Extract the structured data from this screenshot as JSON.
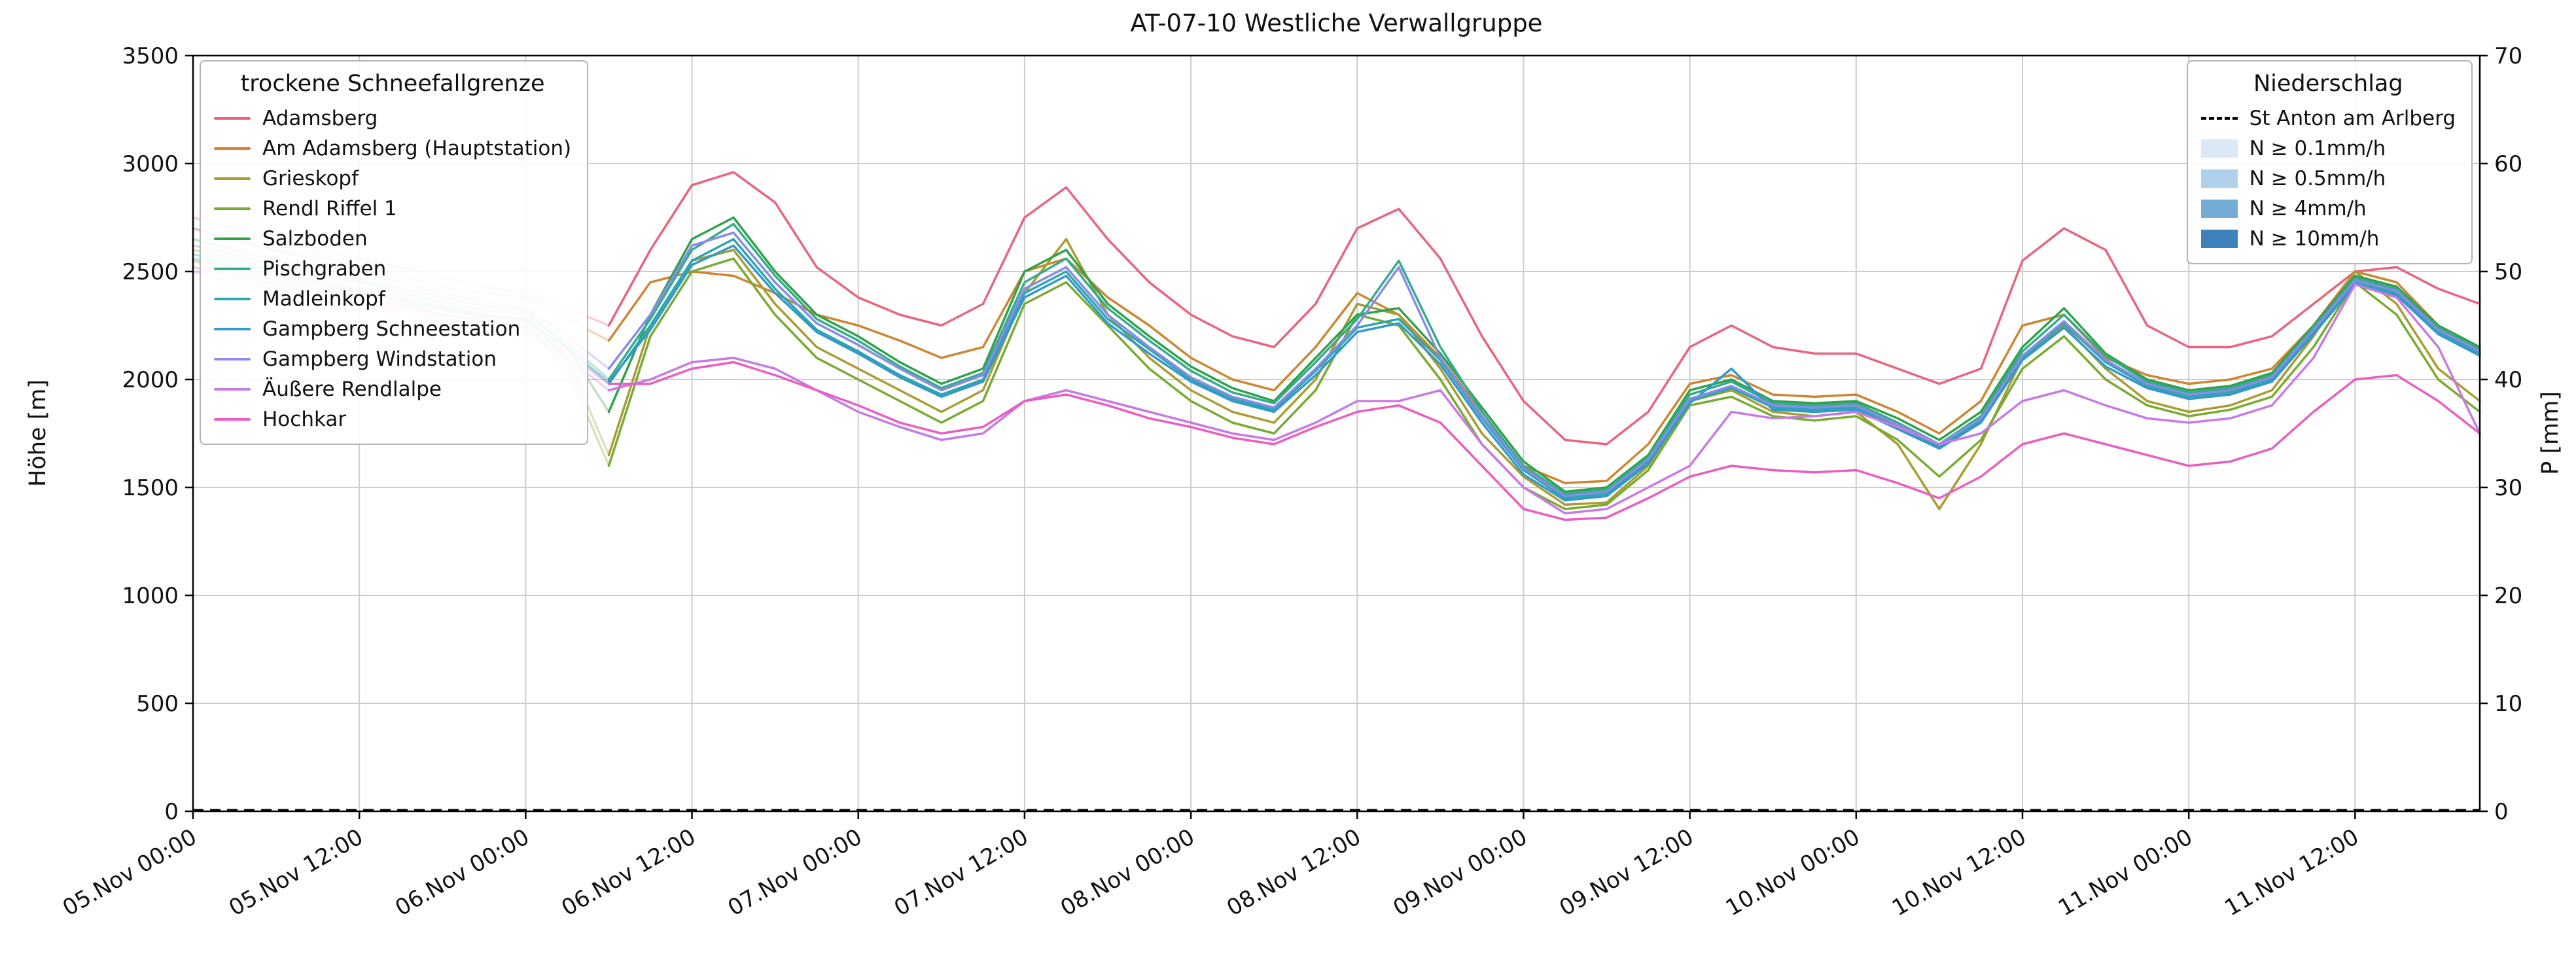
{
  "chart": {
    "title": "AT-07-10 Westliche Verwallgruppe",
    "ylabel_left": "Höhe [m]",
    "ylabel_right": "P [mm]"
  },
  "legend_snow": {
    "title": "trockene Schneefallgrenze",
    "items": [
      {
        "label": "Adamsberg",
        "color": "#e8647f"
      },
      {
        "label": "Am Adamsberg (Hauptstation)",
        "color": "#cd8632"
      },
      {
        "label": "Grieskopf",
        "color": "#a89d32"
      },
      {
        "label": "Rendl Riffel 1",
        "color": "#77ab31"
      },
      {
        "label": "Salzboden",
        "color": "#31a24c"
      },
      {
        "label": "Pischgraben",
        "color": "#35ac8c"
      },
      {
        "label": "Madleinkopf",
        "color": "#2ba7b0"
      },
      {
        "label": "Gampberg Schneestation",
        "color": "#3498cb"
      },
      {
        "label": "Gampberg Windstation",
        "color": "#8b8ae8"
      },
      {
        "label": "Äußere Rendlalpe",
        "color": "#c87ae4"
      },
      {
        "label": "Hochkar",
        "color": "#e95fc1"
      }
    ]
  },
  "legend_precip": {
    "title": "Niederschlag",
    "line_item": {
      "label": "St Anton am Arlberg",
      "color": "#000000",
      "style": "dashed"
    },
    "patch_items": [
      {
        "label": "N ≥ 0.1mm/h",
        "color": "#dbe9f6"
      },
      {
        "label": "N ≥ 0.5mm/h",
        "color": "#b0cfe9"
      },
      {
        "label": "N ≥ 4mm/h",
        "color": "#73add6"
      },
      {
        "label": "N ≥ 10mm/h",
        "color": "#3d82bb"
      }
    ]
  },
  "chart_data": {
    "type": "line",
    "title": "AT-07-10 Westliche Verwallgruppe",
    "xlabel": "",
    "ylabel_left": "Höhe [m]",
    "ylabel_right": "P [mm]",
    "grid": true,
    "x_unit": "hours since 05.Nov 00:00",
    "x_range_hours": [
      0,
      165
    ],
    "ylim_left": [
      0,
      3500
    ],
    "yticks_left": [
      0,
      500,
      1000,
      1500,
      2000,
      2500,
      3000,
      3500
    ],
    "ylim_right": [
      0,
      70
    ],
    "yticks_right": [
      0,
      10,
      20,
      30,
      40,
      50,
      60,
      70
    ],
    "faded_until_hour": 30,
    "x_ticks": [
      {
        "hour": 0,
        "label": "05.Nov 00:00"
      },
      {
        "hour": 12,
        "label": "05.Nov 12:00"
      },
      {
        "hour": 24,
        "label": "06.Nov 00:00"
      },
      {
        "hour": 36,
        "label": "06.Nov 12:00"
      },
      {
        "hour": 48,
        "label": "07.Nov 00:00"
      },
      {
        "hour": 60,
        "label": "07.Nov 12:00"
      },
      {
        "hour": 72,
        "label": "08.Nov 00:00"
      },
      {
        "hour": 84,
        "label": "08.Nov 12:00"
      },
      {
        "hour": 96,
        "label": "09.Nov 00:00"
      },
      {
        "hour": 108,
        "label": "09.Nov 12:00"
      },
      {
        "hour": 120,
        "label": "10.Nov 00:00"
      },
      {
        "hour": 132,
        "label": "10.Nov 12:00"
      },
      {
        "hour": 144,
        "label": "11.Nov 00:00"
      },
      {
        "hour": 156,
        "label": "11.Nov 12:00"
      }
    ],
    "x_hours": [
      0,
      3,
      6,
      9,
      12,
      15,
      18,
      21,
      24,
      27,
      30,
      33,
      36,
      39,
      42,
      45,
      48,
      51,
      54,
      57,
      60,
      63,
      66,
      69,
      72,
      75,
      78,
      81,
      84,
      87,
      90,
      93,
      96,
      99,
      102,
      105,
      108,
      111,
      114,
      117,
      120,
      123,
      126,
      129,
      132,
      135,
      138,
      141,
      144,
      147,
      150,
      153,
      156,
      159,
      162,
      165
    ],
    "series": [
      {
        "name": "Adamsberg",
        "color": "#e8647f",
        "values": [
          2750,
          2700,
          2650,
          2600,
          2560,
          2520,
          2470,
          2430,
          2400,
          2330,
          2250,
          2600,
          2900,
          2960,
          2820,
          2520,
          2380,
          2300,
          2250,
          2350,
          2750,
          2890,
          2650,
          2450,
          2300,
          2200,
          2150,
          2350,
          2700,
          2790,
          2560,
          2200,
          1900,
          1720,
          1700,
          1850,
          2150,
          2250,
          2150,
          2120,
          2120,
          2050,
          1980,
          2050,
          2550,
          2700,
          2600,
          2250,
          2150,
          2150,
          2200,
          2350,
          2500,
          2520,
          2420,
          2350
        ]
      },
      {
        "name": "Am Adamsberg (Hauptstation)",
        "color": "#cd8632",
        "values": [
          2700,
          2640,
          2600,
          2570,
          2520,
          2480,
          2430,
          2400,
          2380,
          2280,
          2180,
          2450,
          2500,
          2480,
          2400,
          2300,
          2250,
          2180,
          2100,
          2150,
          2500,
          2560,
          2380,
          2250,
          2100,
          2000,
          1950,
          2150,
          2400,
          2300,
          2100,
          1850,
          1600,
          1520,
          1530,
          1700,
          1980,
          2020,
          1930,
          1920,
          1930,
          1850,
          1750,
          1900,
          2250,
          2300,
          2100,
          2020,
          1980,
          2000,
          2050,
          2250,
          2500,
          2450,
          2250,
          2150
        ]
      },
      {
        "name": "Grieskopf",
        "color": "#a89d32",
        "values": [
          2600,
          2560,
          2500,
          2460,
          2420,
          2380,
          2340,
          2300,
          2280,
          2100,
          1650,
          2250,
          2550,
          2600,
          2350,
          2150,
          2050,
          1950,
          1850,
          1950,
          2400,
          2650,
          2300,
          2100,
          1950,
          1850,
          1800,
          2000,
          2350,
          2300,
          2050,
          1750,
          1550,
          1420,
          1430,
          1600,
          1900,
          1950,
          1850,
          1830,
          1850,
          1700,
          1400,
          1700,
          2100,
          2250,
          2050,
          1900,
          1850,
          1880,
          1950,
          2200,
          2500,
          2350,
          2050,
          1900
        ]
      },
      {
        "name": "Rendl Riffel 1",
        "color": "#77ab31",
        "values": [
          2550,
          2500,
          2460,
          2420,
          2380,
          2350,
          2300,
          2280,
          2250,
          2050,
          1600,
          2200,
          2500,
          2560,
          2300,
          2100,
          2000,
          1900,
          1800,
          1900,
          2350,
          2450,
          2250,
          2050,
          1900,
          1800,
          1750,
          1950,
          2300,
          2250,
          2000,
          1700,
          1500,
          1400,
          1420,
          1580,
          1880,
          1920,
          1830,
          1810,
          1830,
          1720,
          1550,
          1720,
          2050,
          2200,
          2000,
          1880,
          1830,
          1860,
          1920,
          2150,
          2450,
          2300,
          2000,
          1850
        ]
      },
      {
        "name": "Salzboden",
        "color": "#31a24c",
        "values": [
          2650,
          2600,
          2550,
          2500,
          2460,
          2420,
          2380,
          2340,
          2320,
          2150,
          1850,
          2300,
          2650,
          2750,
          2500,
          2300,
          2200,
          2080,
          1980,
          2050,
          2500,
          2600,
          2350,
          2200,
          2060,
          1960,
          1900,
          2100,
          2300,
          2330,
          2120,
          1870,
          1620,
          1480,
          1500,
          1650,
          1950,
          2000,
          1900,
          1890,
          1900,
          1820,
          1720,
          1850,
          2150,
          2330,
          2120,
          2000,
          1950,
          1970,
          2030,
          2250,
          2480,
          2430,
          2250,
          2150
        ]
      },
      {
        "name": "Pischgraben",
        "color": "#35ac8c",
        "values": [
          2620,
          2580,
          2530,
          2490,
          2450,
          2400,
          2360,
          2320,
          2300,
          2170,
          2000,
          2280,
          2600,
          2720,
          2480,
          2280,
          2180,
          2060,
          1960,
          2030,
          2450,
          2560,
          2330,
          2180,
          2040,
          1940,
          1890,
          2080,
          2280,
          2550,
          2150,
          1850,
          1600,
          1470,
          1490,
          1640,
          1930,
          1990,
          1890,
          1880,
          1890,
          1800,
          1700,
          1830,
          2130,
          2300,
          2110,
          1990,
          1940,
          1960,
          2020,
          2240,
          2470,
          2420,
          2240,
          2140
        ]
      },
      {
        "name": "Madleinkopf",
        "color": "#2ba7b0",
        "values": [
          2580,
          2540,
          2500,
          2450,
          2410,
          2370,
          2330,
          2300,
          2280,
          2150,
          1980,
          2250,
          2550,
          2650,
          2420,
          2230,
          2130,
          2020,
          1930,
          2000,
          2400,
          2500,
          2280,
          2140,
          2000,
          1910,
          1860,
          2040,
          2240,
          2280,
          2090,
          1820,
          1580,
          1450,
          1470,
          1620,
          1900,
          1960,
          1870,
          1860,
          1870,
          1780,
          1690,
          1810,
          2100,
          2260,
          2080,
          1970,
          1920,
          1940,
          2000,
          2220,
          2450,
          2400,
          2220,
          2120
        ]
      },
      {
        "name": "Gampberg Schneestation",
        "color": "#3498cb",
        "values": [
          2560,
          2520,
          2480,
          2440,
          2400,
          2360,
          2320,
          2290,
          2270,
          2140,
          1990,
          2230,
          2530,
          2620,
          2400,
          2220,
          2120,
          2010,
          1920,
          1990,
          2380,
          2480,
          2260,
          2120,
          1990,
          1900,
          1850,
          2020,
          2220,
          2260,
          2070,
          1800,
          1560,
          1440,
          1460,
          1610,
          1890,
          2050,
          1860,
          1850,
          1860,
          1770,
          1680,
          1800,
          2090,
          2240,
          2060,
          1960,
          1910,
          1930,
          1990,
          2210,
          2440,
          2390,
          2210,
          2110
        ]
      },
      {
        "name": "Gampberg Windstation",
        "color": "#8b8ae8",
        "values": [
          2700,
          2650,
          2600,
          2550,
          2500,
          2450,
          2400,
          2360,
          2330,
          2200,
          2050,
          2300,
          2620,
          2680,
          2450,
          2260,
          2160,
          2050,
          1950,
          2020,
          2420,
          2520,
          2300,
          2150,
          2010,
          1920,
          1870,
          2050,
          2250,
          2520,
          2100,
          1830,
          1590,
          1460,
          1480,
          1630,
          1910,
          1970,
          1880,
          1870,
          1880,
          1790,
          1700,
          1820,
          2110,
          2270,
          2090,
          1980,
          1930,
          1950,
          2010,
          2230,
          2460,
          2410,
          2230,
          2130
        ]
      },
      {
        "name": "Äußere Rendlalpe",
        "color": "#c87ae4",
        "values": [
          2500,
          2450,
          2420,
          2380,
          2350,
          2320,
          2280,
          2250,
          2220,
          2100,
          1950,
          2000,
          2080,
          2100,
          2050,
          1950,
          1850,
          1780,
          1720,
          1750,
          1900,
          1950,
          1900,
          1850,
          1800,
          1750,
          1720,
          1800,
          1900,
          1900,
          1950,
          1700,
          1500,
          1380,
          1400,
          1500,
          1600,
          1850,
          1820,
          1830,
          1850,
          1780,
          1700,
          1750,
          1900,
          1950,
          1880,
          1820,
          1800,
          1820,
          1880,
          2100,
          2440,
          2380,
          2150,
          1750
        ]
      },
      {
        "name": "Hochkar",
        "color": "#e95fc1",
        "values": [
          2520,
          2480,
          2440,
          2400,
          2370,
          2340,
          2300,
          2270,
          2240,
          2120,
          1980,
          1980,
          2050,
          2080,
          2020,
          1950,
          1880,
          1800,
          1750,
          1780,
          1900,
          1930,
          1880,
          1820,
          1780,
          1730,
          1700,
          1780,
          1850,
          1880,
          1800,
          1600,
          1400,
          1350,
          1360,
          1450,
          1550,
          1600,
          1580,
          1570,
          1580,
          1520,
          1450,
          1550,
          1700,
          1750,
          1700,
          1650,
          1600,
          1620,
          1680,
          1850,
          2000,
          2020,
          1900,
          1750
        ]
      }
    ],
    "precip_line": {
      "name": "St Anton am Arlberg",
      "style": "dashed",
      "color": "#000000",
      "axis": "right",
      "values_mm": [
        0,
        0,
        0,
        0,
        0,
        0,
        0,
        0,
        0,
        0,
        0,
        0,
        0,
        0,
        0,
        0,
        0,
        0,
        0,
        0,
        0,
        0,
        0,
        0,
        0,
        0,
        0,
        0,
        0,
        0,
        0,
        0,
        0,
        0,
        0,
        0,
        0,
        0,
        0,
        0,
        0,
        0,
        0,
        0,
        0,
        0,
        0,
        0,
        0,
        0,
        0,
        0,
        0,
        0,
        0,
        0
      ]
    }
  }
}
